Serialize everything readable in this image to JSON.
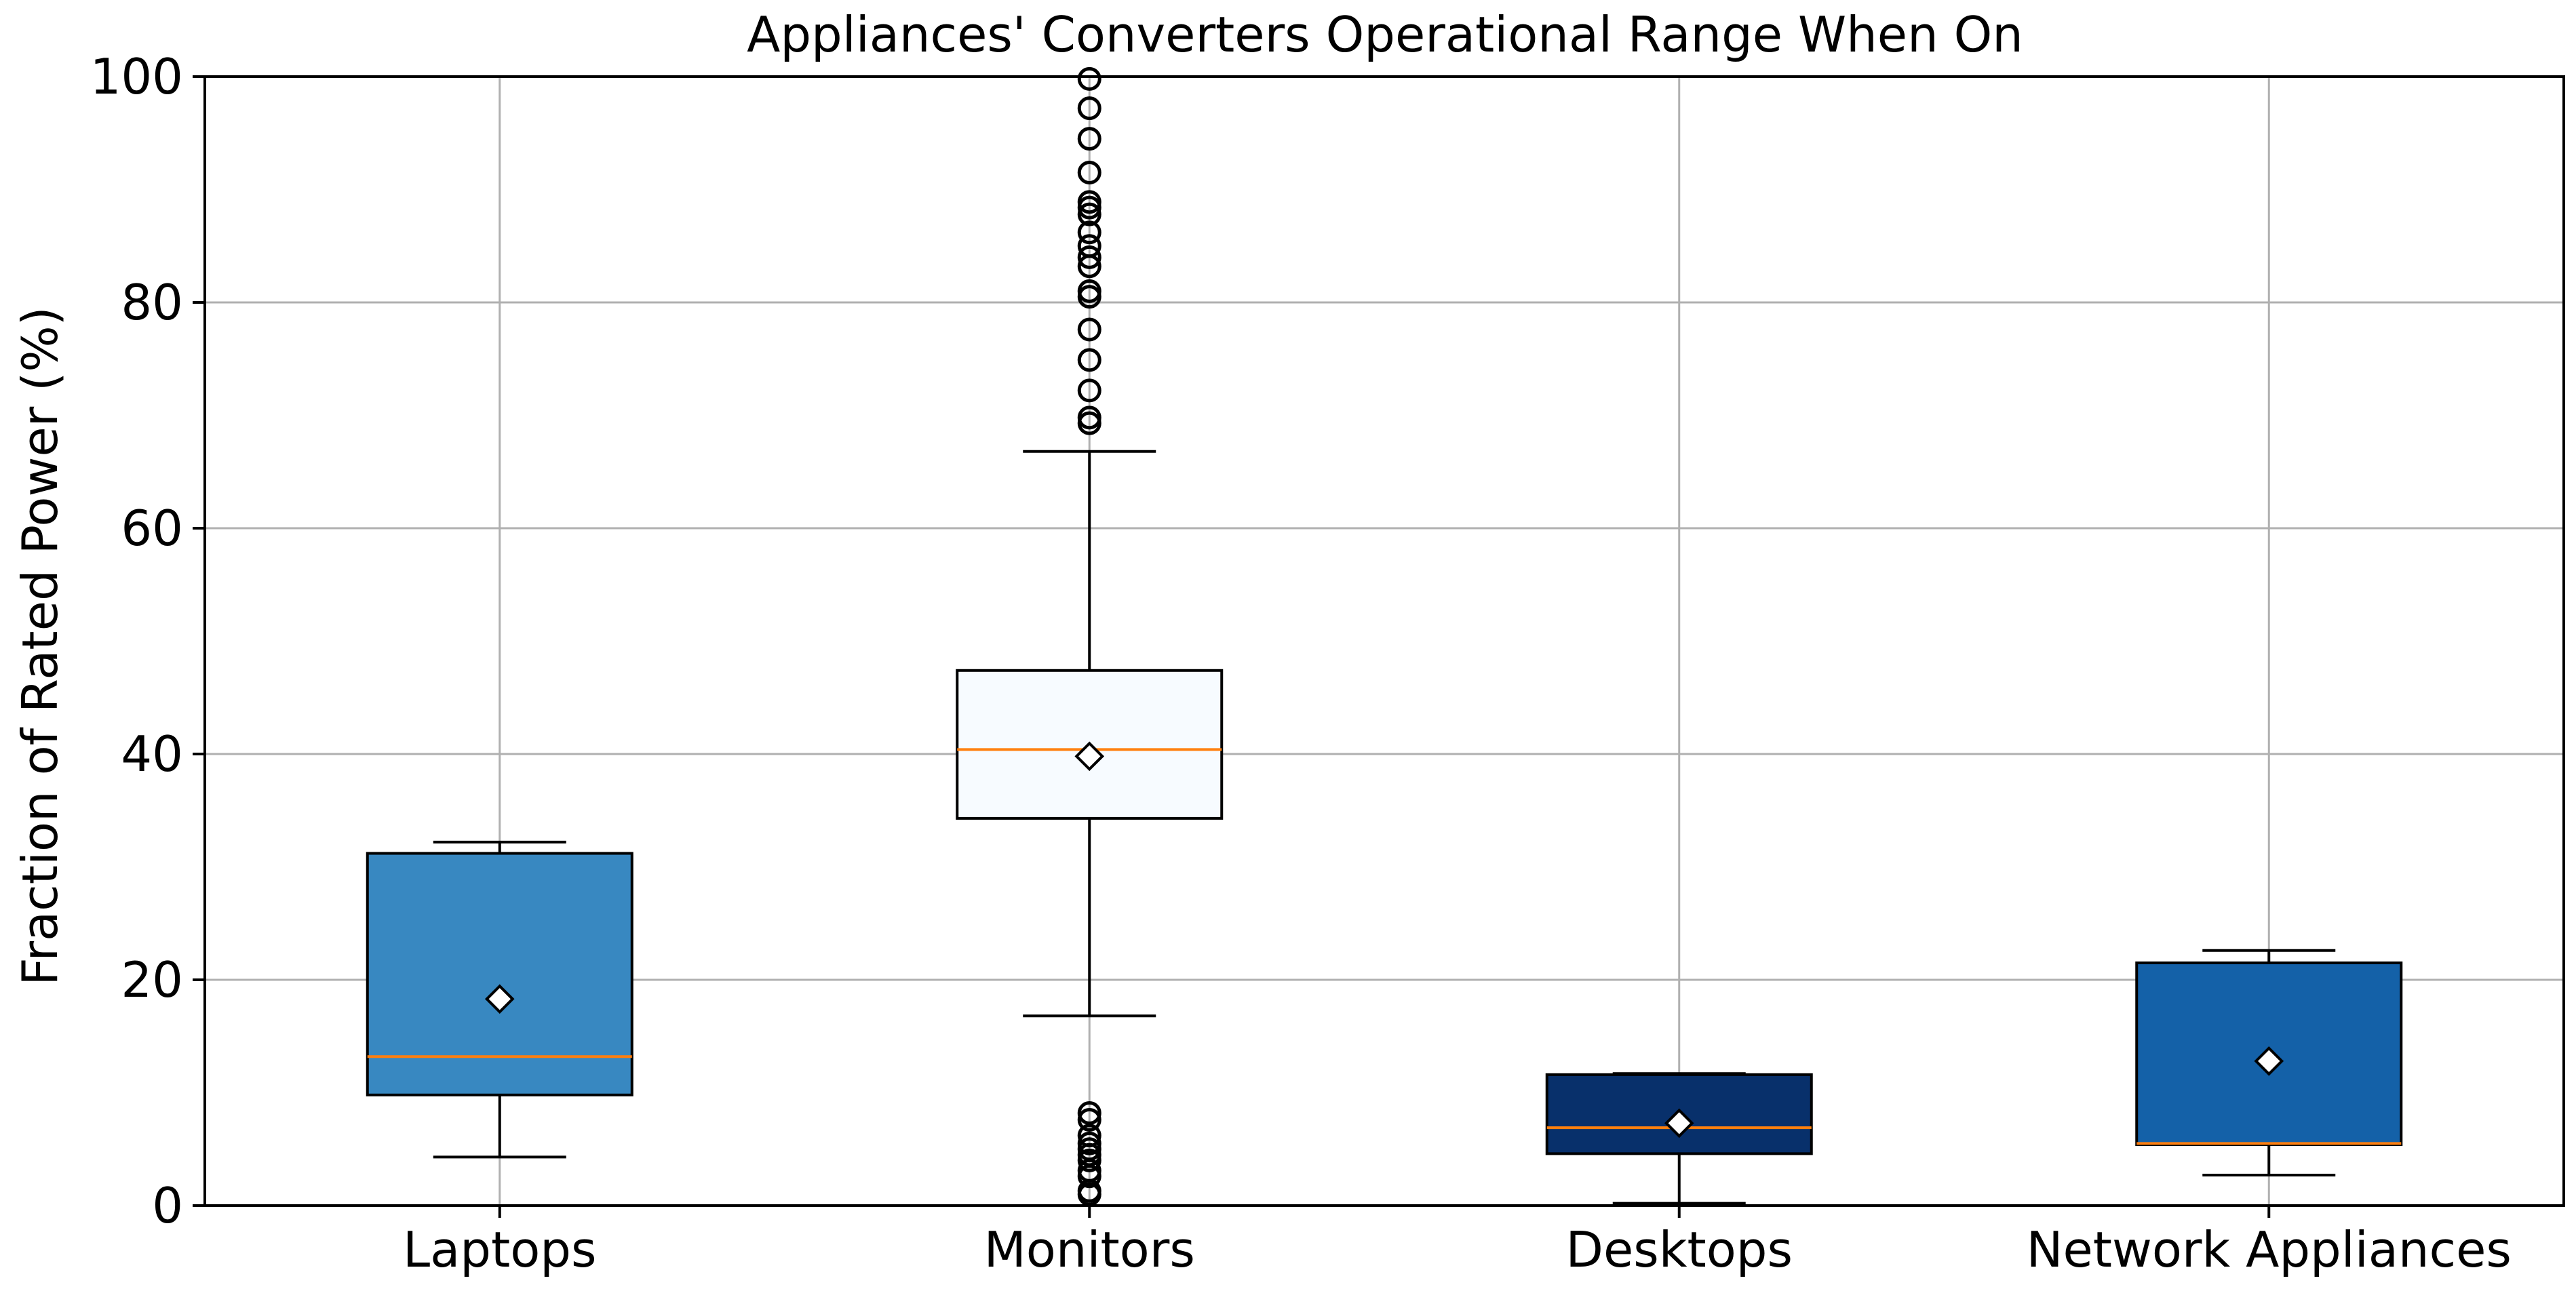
{
  "chart_data": {
    "type": "box",
    "title": "Appliances' Converters Operational Range When On",
    "xlabel": "",
    "ylabel": "Fraction of Rated Power (%)",
    "ylim": [
      0,
      100
    ],
    "yticks": [
      0,
      20,
      40,
      60,
      80,
      100
    ],
    "grid": true,
    "categories": [
      "Laptops",
      "Monitors",
      "Desktops",
      "Network Appliances"
    ],
    "boxes": [
      {
        "category": "Laptops",
        "whisker_low": 4.3,
        "q1": 9.8,
        "median": 13.2,
        "q3": 31.2,
        "whisker_high": 32.2,
        "mean": 18.3,
        "fill": "#3888c1",
        "outliers": []
      },
      {
        "category": "Monitors",
        "whisker_low": 16.8,
        "q1": 34.3,
        "median": 40.4,
        "q3": 47.4,
        "whisker_high": 66.8,
        "mean": 39.8,
        "fill": "#f7fbff",
        "outliers": [
          1.0,
          1.3,
          2.6,
          3.1,
          4.0,
          4.5,
          5.0,
          5.5,
          6.2,
          7.6,
          8.2,
          69.3,
          69.8,
          72.2,
          74.9,
          77.6,
          80.5,
          81.0,
          83.2,
          84.0,
          85.0,
          86.2,
          87.8,
          88.4,
          88.9,
          91.5,
          94.5,
          97.2,
          99.8
        ]
      },
      {
        "category": "Desktops",
        "whisker_low": 0.2,
        "q1": 4.6,
        "median": 6.9,
        "q3": 11.6,
        "whisker_high": 11.7,
        "mean": 7.3,
        "fill": "#08306b",
        "outliers": []
      },
      {
        "category": "Network Appliances",
        "whisker_low": 2.7,
        "q1": 5.4,
        "median": 5.5,
        "q3": 21.5,
        "whisker_high": 22.6,
        "mean": 12.8,
        "fill": "#1461a8",
        "outliers": []
      }
    ],
    "median_color": "#ff7f0e",
    "grid_color": "#b0b0b0"
  }
}
